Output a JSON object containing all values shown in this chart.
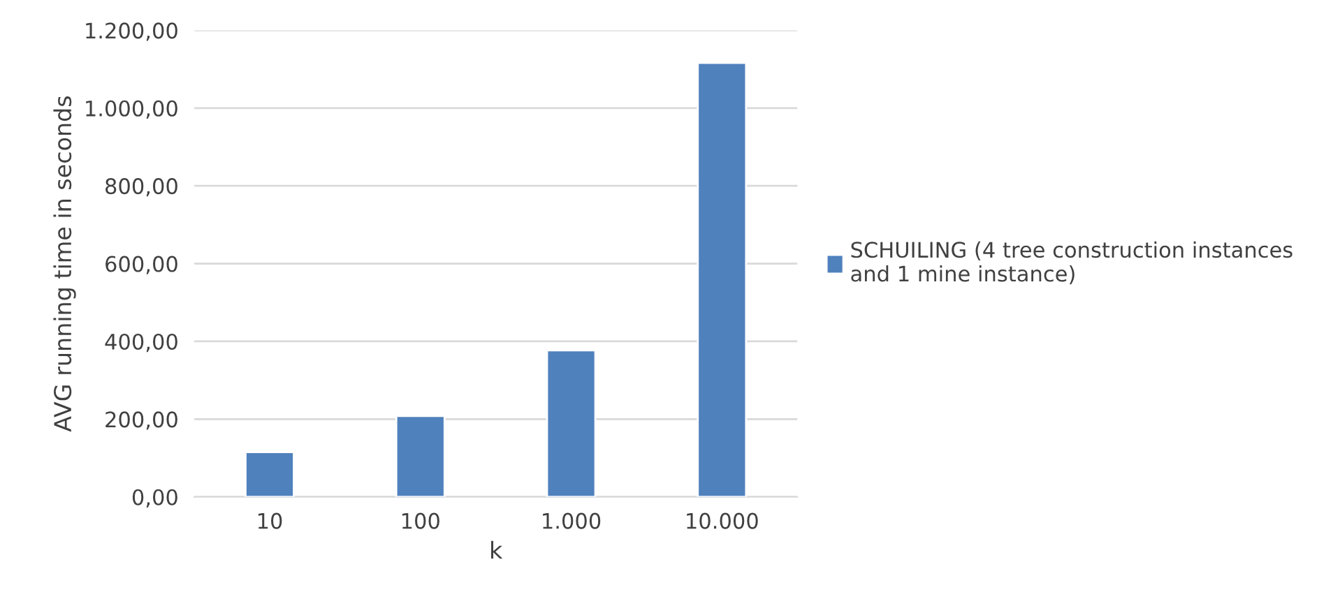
{
  "chart_data": {
    "type": "bar",
    "xlabel": "k",
    "ylabel": "AVG running time in seconds",
    "categories": [
      "10",
      "100",
      "1.000",
      "10.000"
    ],
    "series": [
      {
        "name": "SCHUILING (4 tree construction instances and 1 mine instance)",
        "color": "#4f81bd",
        "values": [
          115,
          208,
          377,
          1116
        ]
      }
    ],
    "ylim": [
      0,
      1200
    ],
    "yticks": [
      {
        "value": 0,
        "label": "0,00"
      },
      {
        "value": 200,
        "label": "200,00"
      },
      {
        "value": 400,
        "label": "400,00"
      },
      {
        "value": 600,
        "label": "600,00"
      },
      {
        "value": 800,
        "label": "800,00"
      },
      {
        "value": 1000,
        "label": "1.000,00"
      },
      {
        "value": 1200,
        "label": "1.200,00"
      }
    ],
    "grid": "y",
    "legend": "right"
  }
}
